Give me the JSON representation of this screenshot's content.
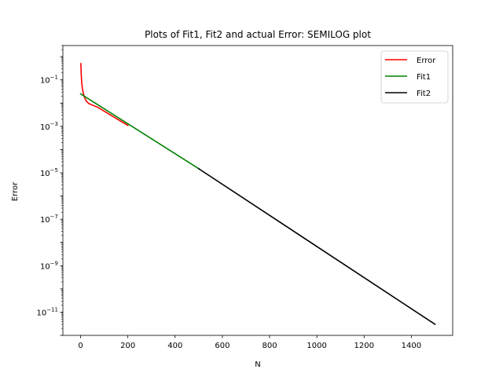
{
  "chart_data": {
    "type": "line",
    "title": "Plots of Fit1, Fit2 and actual Error: SEMILOG plot",
    "xlabel": "N",
    "ylabel": "Error",
    "xlim": [
      -75,
      1575
    ],
    "ylim": [
      1e-12,
      3
    ],
    "yscale": "log",
    "grid": false,
    "legend_position": "top-right",
    "x_ticks": [
      {
        "value": 0,
        "label": "0"
      },
      {
        "value": 200,
        "label": "200"
      },
      {
        "value": 400,
        "label": "400"
      },
      {
        "value": 600,
        "label": "600"
      },
      {
        "value": 800,
        "label": "800"
      },
      {
        "value": 1000,
        "label": "1000"
      },
      {
        "value": 1200,
        "label": "1200"
      },
      {
        "value": 1400,
        "label": "1400"
      }
    ],
    "y_ticks": [
      {
        "value": 0.1,
        "base": "10",
        "exp": "−1"
      },
      {
        "value": 0.001,
        "base": "10",
        "exp": "−3"
      },
      {
        "value": 1e-05,
        "base": "10",
        "exp": "−5"
      },
      {
        "value": 1e-07,
        "base": "10",
        "exp": "−7"
      },
      {
        "value": 1e-09,
        "base": "10",
        "exp": "−9"
      },
      {
        "value": 1e-11,
        "base": "10",
        "exp": "−11"
      }
    ],
    "series": [
      {
        "name": "Error",
        "color": "#ff0000",
        "x": [
          1,
          3,
          5,
          8,
          12,
          18,
          25,
          35,
          50,
          70,
          100,
          150,
          200
        ],
        "y": [
          0.5,
          0.15,
          0.07,
          0.04,
          0.025,
          0.016,
          0.012,
          0.0095,
          0.0082,
          0.0068,
          0.0045,
          0.0022,
          0.0011
        ]
      },
      {
        "name": "Fit1",
        "color": "#008000",
        "x": [
          0,
          500
        ],
        "y": [
          0.025,
          1.5e-05
        ]
      },
      {
        "name": "Fit2",
        "color": "#000000",
        "x": [
          500,
          1500
        ],
        "y": [
          1.5e-05,
          3e-12
        ]
      }
    ]
  }
}
